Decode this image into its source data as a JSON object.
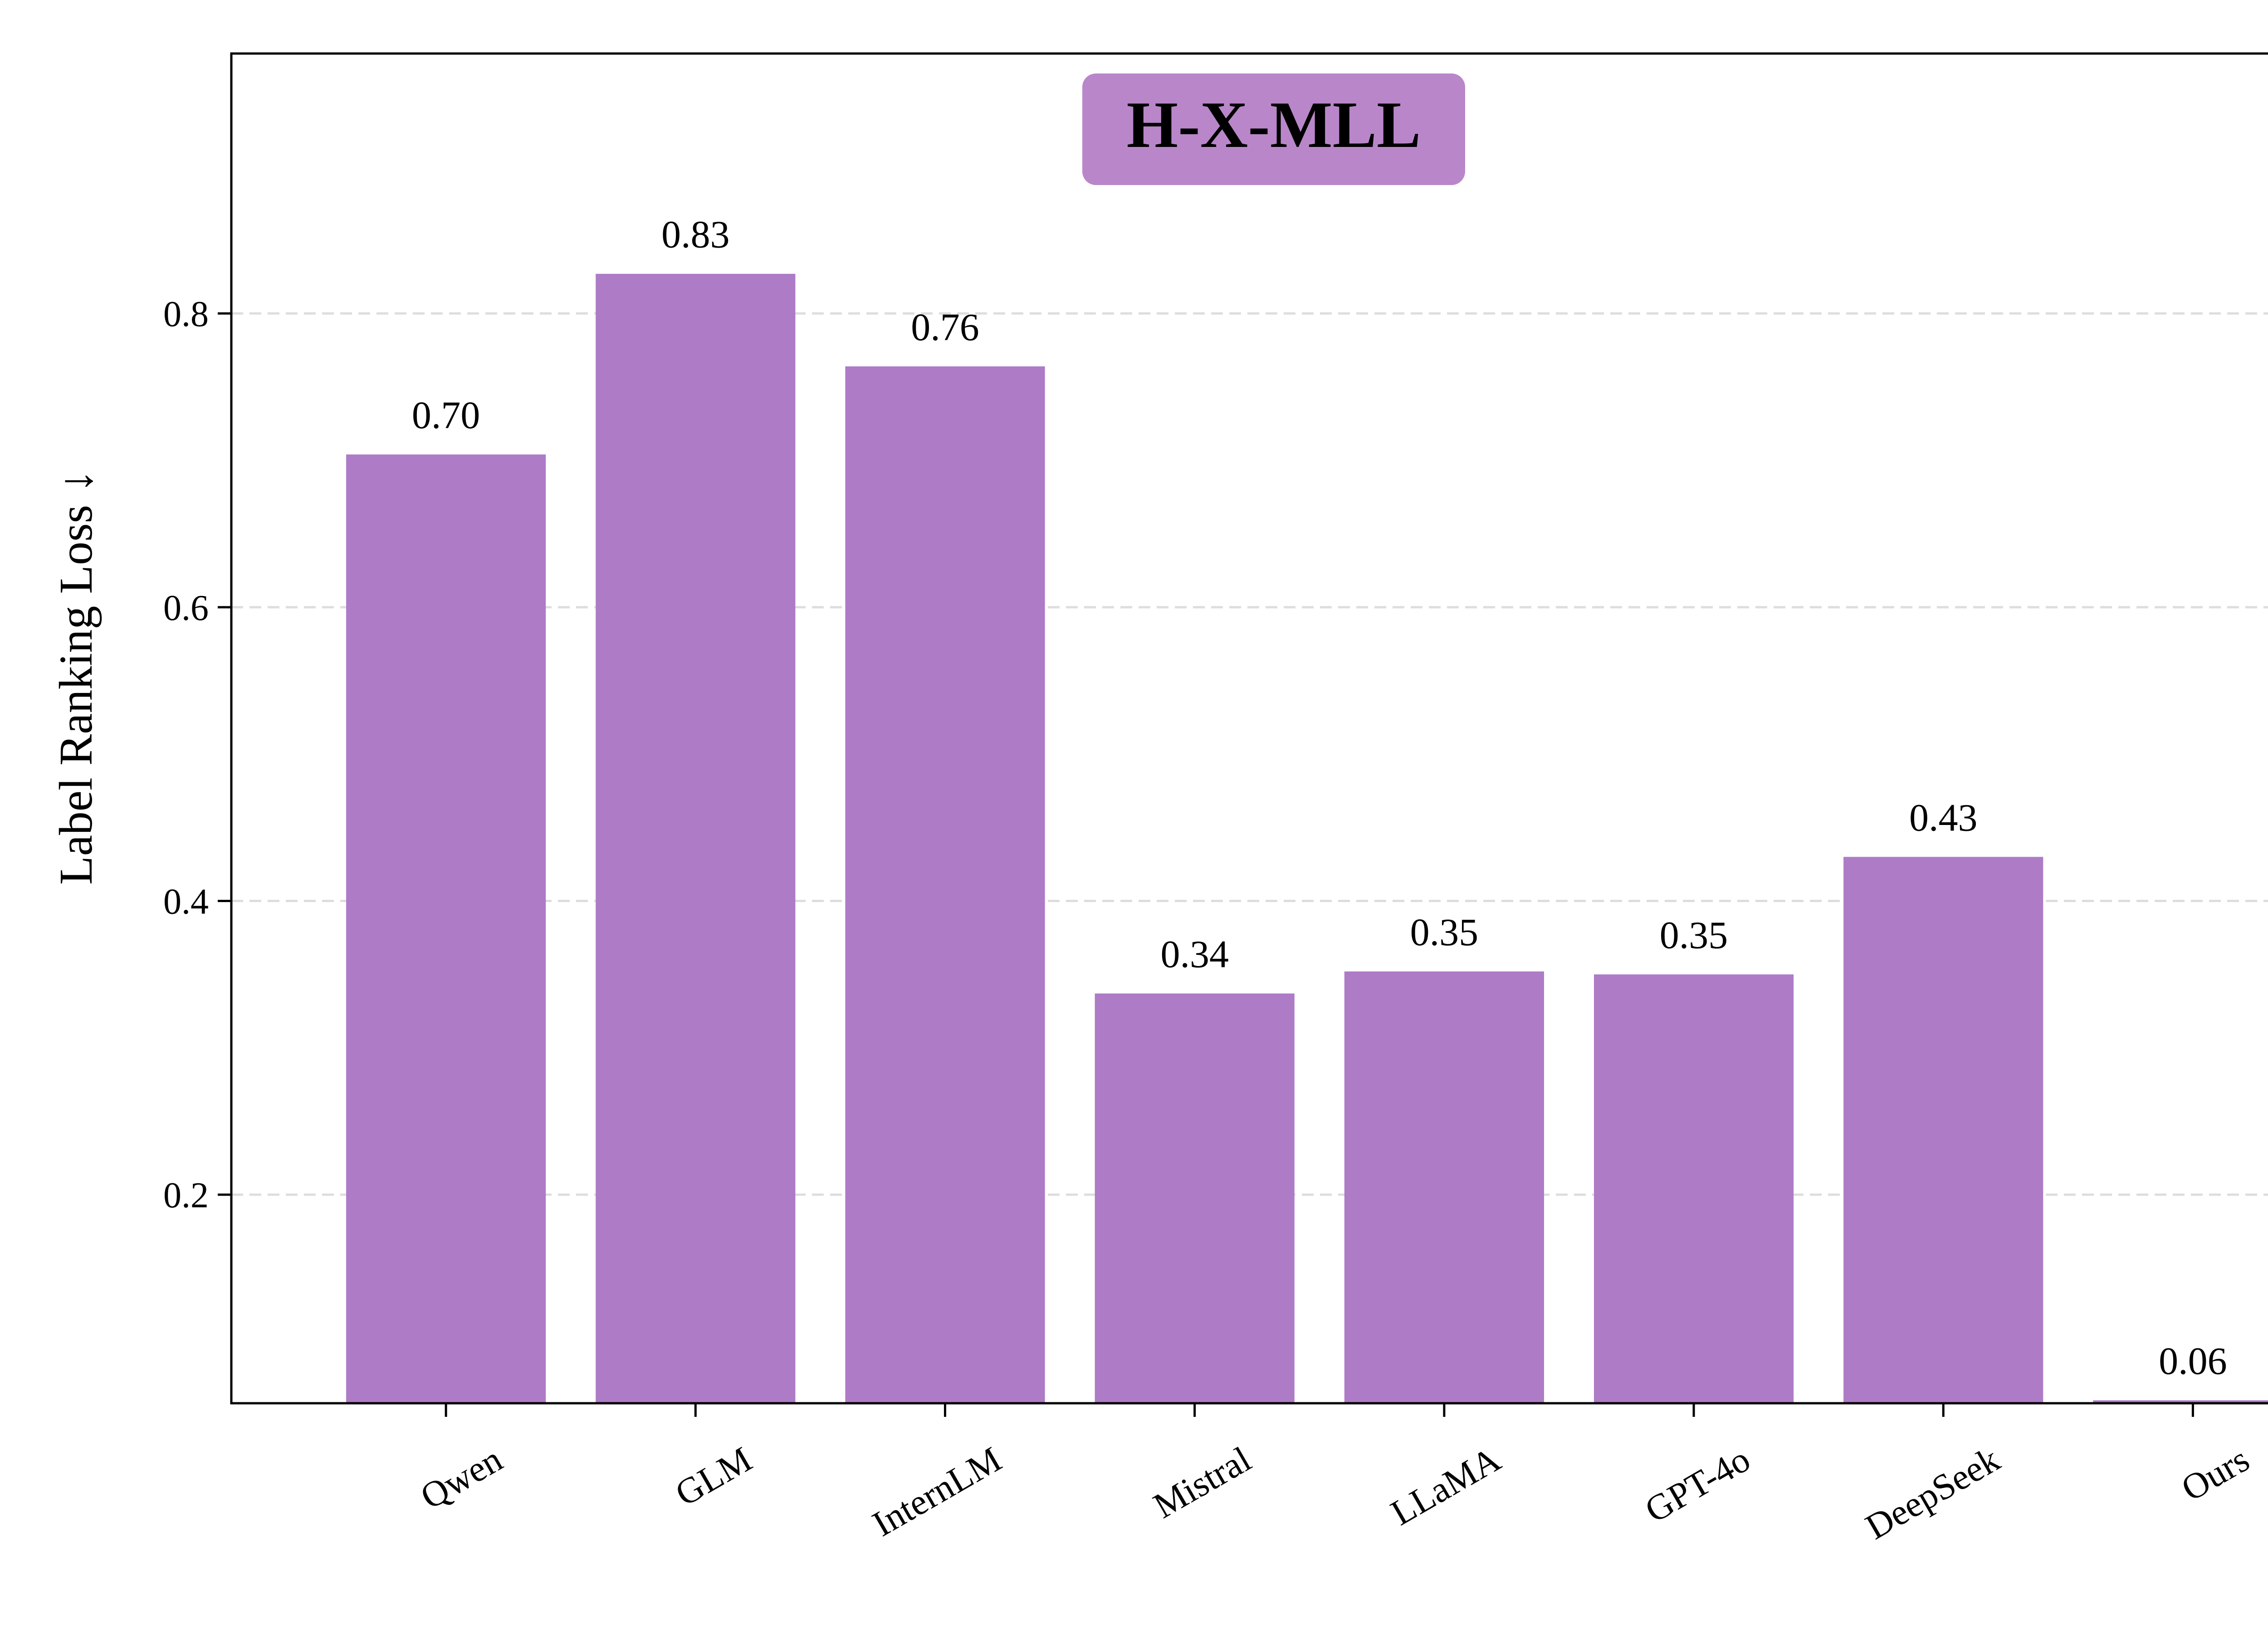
{
  "chart_data": {
    "type": "bar",
    "title": "H-X-MLL",
    "xlabel": "",
    "ylabel": "Label Ranking Loss ↓",
    "categories": [
      "Qwen",
      "GLM",
      "InternLM",
      "Mistral",
      "LLaMA",
      "GPT-4o",
      "DeepSeek",
      "Ours"
    ],
    "values": [
      0.704,
      0.827,
      0.764,
      0.337,
      0.352,
      0.35,
      0.43,
      0.06
    ],
    "value_labels": [
      "0.70",
      "0.83",
      "0.76",
      "0.34",
      "0.35",
      "0.35",
      "0.43",
      "0.06"
    ],
    "ylim": [
      0.058,
      0.977
    ],
    "yticks": [
      0.2,
      0.4,
      0.6,
      0.8
    ],
    "ytick_labels": [
      "0.2",
      "0.4",
      "0.6",
      "0.8"
    ],
    "grid": "horizontal-dashed",
    "legend": "none",
    "colors": {
      "bar": "#ae7bc6",
      "title_box": "#b987c9",
      "grid": "#dddddd",
      "axis": "#000000"
    }
  }
}
